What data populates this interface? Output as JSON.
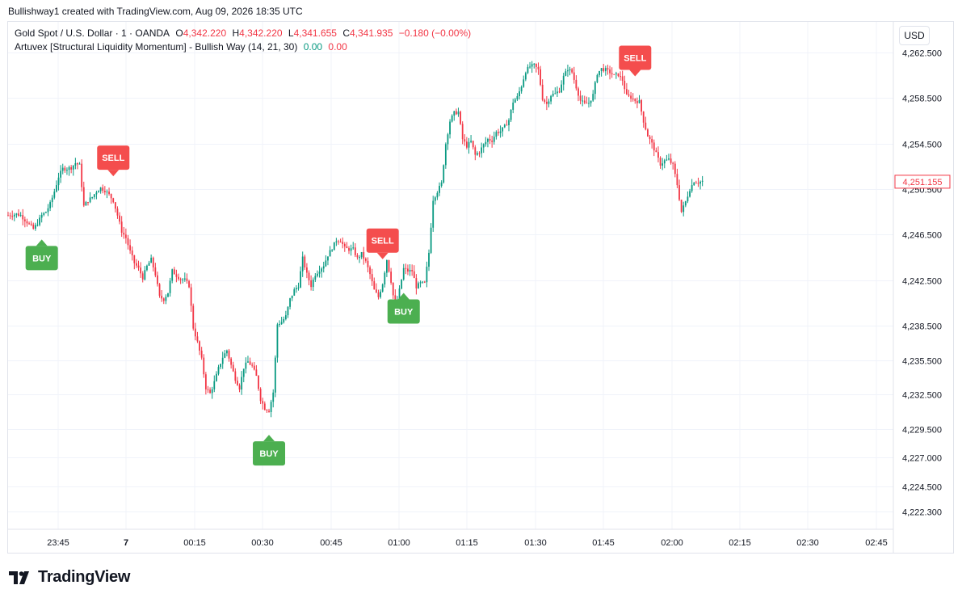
{
  "header": {
    "text": "Bullishway1 created with TradingView.com, Aug 09, 2026 18:35 UTC"
  },
  "legend": {
    "symbol": "Gold Spot / U.S. Dollar · 1 · OANDA",
    "o_label": "O",
    "o_value": "4,342.220",
    "h_label": "H",
    "h_value": "4,342.220",
    "l_label": "L",
    "l_value": "4,341.655",
    "c_label": "C",
    "c_value": "4,341.935",
    "change": "−0.180 (−0.00%)",
    "indicator": "Artuvex [Structural Liquidity Momentum] - Bullish Way (14, 21, 30)",
    "ind_val1": "0.00",
    "ind_val2": "0.00"
  },
  "currency_button": {
    "label": "USD"
  },
  "footer": {
    "brand": "TradingView"
  },
  "colors": {
    "up": "#089981",
    "down": "#f23645",
    "buy": "#4caf50",
    "sell": "#f44d4d",
    "grid": "#f0f3fa",
    "text": "#131722"
  },
  "chart_data": {
    "type": "candlestick",
    "symbol": "Gold Spot / U.S. Dollar",
    "interval": "1",
    "y_ticks": [
      "4,262.500",
      "4,258.500",
      "4,254.500",
      "4,250.500",
      "4,246.500",
      "4,242.500",
      "4,238.500",
      "4,235.500",
      "4,232.500",
      "4,229.500",
      "4,227.000",
      "4,224.500",
      "4,222.300"
    ],
    "x_ticks": [
      "23:45",
      "7",
      "00:15",
      "00:30",
      "00:45",
      "01:00",
      "01:15",
      "01:30",
      "01:45",
      "02:00",
      "02:15",
      "02:30",
      "02:45"
    ],
    "last_price": "4,251.155",
    "close_path": [
      [
        0,
        4248.2
      ],
      [
        4,
        4248.3
      ],
      [
        6,
        4248.2
      ],
      [
        8,
        4247.8
      ],
      [
        10,
        4247.4
      ],
      [
        12,
        4247.0
      ],
      [
        14,
        4247.5
      ],
      [
        16,
        4248.2
      ],
      [
        18,
        4248.5
      ],
      [
        20,
        4249.2
      ],
      [
        22,
        4250.3
      ],
      [
        24,
        4251.6
      ],
      [
        26,
        4252.3
      ],
      [
        28,
        4252.3
      ],
      [
        30,
        4252.4
      ],
      [
        32,
        4252.8
      ],
      [
        34,
        4252.6
      ],
      [
        36,
        4249.0
      ],
      [
        38,
        4249.5
      ],
      [
        40,
        4249.8
      ],
      [
        42,
        4250.3
      ],
      [
        44,
        4250.6
      ],
      [
        46,
        4250.4
      ],
      [
        48,
        4250.0
      ],
      [
        50,
        4249.5
      ],
      [
        52,
        4248.2
      ],
      [
        54,
        4246.8
      ],
      [
        56,
        4246.2
      ],
      [
        58,
        4245.0
      ],
      [
        60,
        4244.0
      ],
      [
        62,
        4243.5
      ],
      [
        64,
        4242.7
      ],
      [
        66,
        4243.7
      ],
      [
        68,
        4244.3
      ],
      [
        70,
        4243.0
      ],
      [
        72,
        4241.0
      ],
      [
        74,
        4240.8
      ],
      [
        76,
        4241.4
      ],
      [
        78,
        4243.3
      ],
      [
        80,
        4242.9
      ],
      [
        82,
        4242.6
      ],
      [
        84,
        4242.5
      ],
      [
        86,
        4242.0
      ],
      [
        88,
        4238.3
      ],
      [
        90,
        4237.0
      ],
      [
        92,
        4235.5
      ],
      [
        94,
        4233.0
      ],
      [
        96,
        4232.5
      ],
      [
        98,
        4233.5
      ],
      [
        100,
        4234.7
      ],
      [
        102,
        4235.7
      ],
      [
        104,
        4236.3
      ],
      [
        106,
        4235.0
      ],
      [
        108,
        4233.8
      ],
      [
        110,
        4233.0
      ],
      [
        112,
        4234.8
      ],
      [
        114,
        4235.3
      ],
      [
        116,
        4234.9
      ],
      [
        118,
        4234.0
      ],
      [
        120,
        4232.0
      ],
      [
        122,
        4231.2
      ],
      [
        124,
        4231.0
      ],
      [
        126,
        4232.6
      ],
      [
        128,
        4238.6
      ],
      [
        130,
        4238.8
      ],
      [
        132,
        4239.3
      ],
      [
        134,
        4240.8
      ],
      [
        136,
        4241.6
      ],
      [
        138,
        4242.0
      ],
      [
        140,
        4244.4
      ],
      [
        142,
        4243.0
      ],
      [
        144,
        4242.0
      ],
      [
        146,
        4243.0
      ],
      [
        148,
        4243.4
      ],
      [
        150,
        4243.8
      ],
      [
        152,
        4244.7
      ],
      [
        154,
        4245.3
      ],
      [
        156,
        4246.0
      ],
      [
        158,
        4246.0
      ],
      [
        160,
        4245.3
      ],
      [
        162,
        4245.2
      ],
      [
        164,
        4245.2
      ],
      [
        166,
        4244.4
      ],
      [
        168,
        4244.8
      ],
      [
        170,
        4244.1
      ],
      [
        172,
        4243.0
      ],
      [
        174,
        4241.6
      ],
      [
        176,
        4241.0
      ],
      [
        178,
        4242.2
      ],
      [
        180,
        4244.3
      ],
      [
        182,
        4242.4
      ],
      [
        184,
        4239.9
      ],
      [
        186,
        4241.6
      ],
      [
        188,
        4243.5
      ],
      [
        190,
        4243.3
      ],
      [
        192,
        4243.3
      ],
      [
        194,
        4241.9
      ],
      [
        196,
        4242.2
      ],
      [
        198,
        4242.2
      ],
      [
        200,
        4244.9
      ],
      [
        202,
        4249.6
      ],
      [
        204,
        4250.3
      ],
      [
        206,
        4251.0
      ],
      [
        208,
        4254.5
      ],
      [
        210,
        4256.5
      ],
      [
        212,
        4257.2
      ],
      [
        214,
        4257.3
      ],
      [
        216,
        4254.9
      ],
      [
        218,
        4254.3
      ],
      [
        220,
        4254.7
      ],
      [
        222,
        4253.5
      ],
      [
        224,
        4253.8
      ],
      [
        226,
        4254.4
      ],
      [
        228,
        4254.9
      ],
      [
        230,
        4254.8
      ],
      [
        232,
        4255.5
      ],
      [
        234,
        4255.6
      ],
      [
        236,
        4256.0
      ],
      [
        238,
        4256.6
      ],
      [
        240,
        4258.2
      ],
      [
        242,
        4258.6
      ],
      [
        244,
        4259.6
      ],
      [
        246,
        4260.9
      ],
      [
        248,
        4261.3
      ],
      [
        250,
        4261.4
      ],
      [
        252,
        4261.0
      ],
      [
        254,
        4258.5
      ],
      [
        256,
        4258.0
      ],
      [
        258,
        4258.8
      ],
      [
        260,
        4258.9
      ],
      [
        262,
        4259.2
      ],
      [
        264,
        4260.4
      ],
      [
        266,
        4261.1
      ],
      [
        268,
        4260.8
      ],
      [
        270,
        4259.5
      ],
      [
        272,
        4258.3
      ],
      [
        274,
        4258.0
      ],
      [
        276,
        4258.1
      ],
      [
        278,
        4258.8
      ],
      [
        280,
        4260.7
      ],
      [
        282,
        4261.1
      ],
      [
        284,
        4261.0
      ],
      [
        286,
        4260.8
      ],
      [
        288,
        4260.5
      ],
      [
        290,
        4260.6
      ],
      [
        292,
        4260.1
      ],
      [
        294,
        4258.7
      ],
      [
        296,
        4258.6
      ],
      [
        298,
        4258.3
      ],
      [
        300,
        4258.2
      ],
      [
        302,
        4256.5
      ],
      [
        304,
        4255.2
      ],
      [
        306,
        4254.5
      ],
      [
        308,
        4253.6
      ],
      [
        310,
        4252.7
      ],
      [
        312,
        4253.0
      ],
      [
        314,
        4253.1
      ],
      [
        316,
        4252.6
      ],
      [
        318,
        4250.9
      ],
      [
        320,
        4248.5
      ],
      [
        322,
        4249.4
      ],
      [
        324,
        4250.5
      ],
      [
        326,
        4251.2
      ],
      [
        328,
        4251.1
      ],
      [
        330,
        4251.2
      ]
    ],
    "signals": [
      {
        "type": "BUY",
        "position": 16
      },
      {
        "type": "SELL",
        "position": 50
      },
      {
        "type": "BUY",
        "position": 124
      },
      {
        "type": "SELL",
        "position": 178
      },
      {
        "type": "BUY",
        "position": 188
      },
      {
        "type": "SELL",
        "position": 298
      }
    ]
  }
}
